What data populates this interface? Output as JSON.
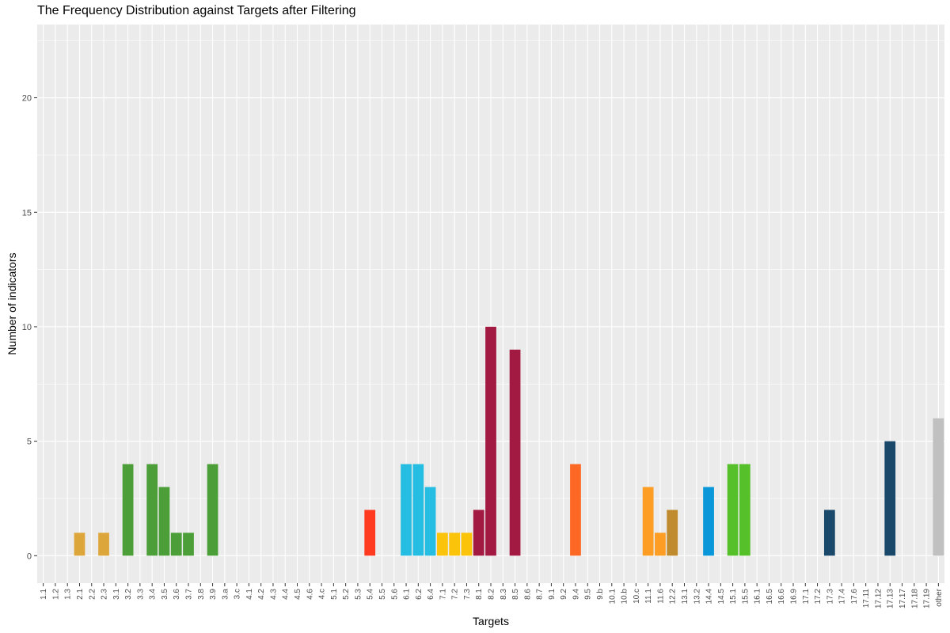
{
  "chart_data": {
    "type": "bar",
    "title": "The Frequency Distribution against Targets after Filtering",
    "xlabel": "Targets",
    "ylabel": "Number of indicators",
    "ylim": [
      -1.2,
      23.2
    ],
    "yticks": [
      0,
      5,
      10,
      15,
      20
    ],
    "grid": true,
    "legend": "none",
    "categories": [
      "1.1",
      "1.2",
      "1.3",
      "2.1",
      "2.2",
      "2.3",
      "3.1",
      "3.2",
      "3.3",
      "3.4",
      "3.5",
      "3.6",
      "3.7",
      "3.8",
      "3.9",
      "3.a",
      "3.c",
      "4.1",
      "4.2",
      "4.3",
      "4.4",
      "4.5",
      "4.6",
      "4.c",
      "5.1",
      "5.2",
      "5.3",
      "5.4",
      "5.5",
      "5.6",
      "6.1",
      "6.2",
      "6.4",
      "7.1",
      "7.2",
      "7.3",
      "8.1",
      "8.2",
      "8.3",
      "8.5",
      "8.6",
      "8.7",
      "9.1",
      "9.2",
      "9.4",
      "9.5",
      "9.b",
      "10.1",
      "10.b",
      "10.c",
      "11.1",
      "11.6",
      "12.2",
      "13.1",
      "13.2",
      "14.4",
      "14.5",
      "15.1",
      "15.5",
      "16.1",
      "16.5",
      "16.6",
      "16.9",
      "17.1",
      "17.2",
      "17.3",
      "17.4",
      "17.6",
      "17.11",
      "17.12",
      "17.13",
      "17.17",
      "17.18",
      "17.19",
      "other"
    ],
    "values": [
      0,
      0,
      0,
      1,
      0,
      1,
      0,
      4,
      0,
      4,
      3,
      1,
      1,
      0,
      4,
      0,
      0,
      0,
      0,
      0,
      0,
      0,
      0,
      0,
      0,
      0,
      0,
      2,
      0,
      0,
      4,
      4,
      3,
      1,
      1,
      1,
      2,
      10,
      0,
      9,
      0,
      0,
      0,
      0,
      4,
      0,
      0,
      0,
      0,
      0,
      3,
      1,
      2,
      0,
      0,
      3,
      0,
      4,
      4,
      0,
      0,
      0,
      0,
      0,
      0,
      2,
      0,
      0,
      0,
      0,
      5,
      0,
      0,
      0,
      6
    ],
    "colors": [
      "#E5243B",
      "#E5243B",
      "#E5243B",
      "#DDA63A",
      "#DDA63A",
      "#DDA63A",
      "#4C9F38",
      "#4C9F38",
      "#4C9F38",
      "#4C9F38",
      "#4C9F38",
      "#4C9F38",
      "#4C9F38",
      "#4C9F38",
      "#4C9F38",
      "#4C9F38",
      "#4C9F38",
      "#C5192D",
      "#C5192D",
      "#C5192D",
      "#C5192D",
      "#C5192D",
      "#C5192D",
      "#C5192D",
      "#FF3A21",
      "#FF3A21",
      "#FF3A21",
      "#FF3A21",
      "#FF3A21",
      "#26BDE2",
      "#26BDE2",
      "#26BDE2",
      "#26BDE2",
      "#FCC30B",
      "#FCC30B",
      "#FCC30B",
      "#A21942",
      "#A21942",
      "#A21942",
      "#A21942",
      "#A21942",
      "#A21942",
      "#FD6925",
      "#FD6925",
      "#FD6925",
      "#FD6925",
      "#FD6925",
      "#DD1367",
      "#DD1367",
      "#DD1367",
      "#FD9D24",
      "#FD9D24",
      "#BF8B2E",
      "#3F7E44",
      "#0A97D9",
      "#0A97D9",
      "#56C02B",
      "#56C02B",
      "#56C02B",
      "#00689D",
      "#00689D",
      "#00689D",
      "#00689D",
      "#19486A",
      "#19486A",
      "#19486A",
      "#19486A",
      "#19486A",
      "#19486A",
      "#19486A",
      "#19486A",
      "#19486A",
      "#19486A",
      "#19486A",
      "#C0C0C0"
    ]
  }
}
